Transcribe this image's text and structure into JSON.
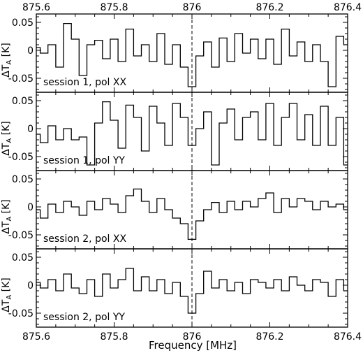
{
  "chart_data": {
    "type": "line",
    "style": "step",
    "layout": "4 vertically stacked panels sharing the frequency axis",
    "xlabel": "Frequency [MHz]",
    "xlim": [
      875.6,
      876.4
    ],
    "x_ticks": [
      "875.6",
      "875.8",
      "876",
      "876.2",
      "876.4"
    ],
    "reference_line": {
      "x": 876.0,
      "style": "dashed"
    },
    "grid": false,
    "line_color": "#000000",
    "panels": [
      {
        "label": "session 1, pol XX",
        "ylabel": "ΔT_A [K]",
        "ylim": [
          -0.075,
          0.065
        ],
        "y_ticks": [
          "0.05",
          "0",
          "-0.05"
        ],
        "series": [
          {
            "x": [
              875.6,
              875.62,
              875.64,
              875.66,
              875.68,
              875.7,
              875.72,
              875.74,
              875.76,
              875.78,
              875.8,
              875.82,
              875.84,
              875.86,
              875.88,
              875.9,
              875.92,
              875.94,
              875.96,
              875.98,
              876.0,
              876.02,
              876.04,
              876.06,
              876.08,
              876.1,
              876.12,
              876.14,
              876.16,
              876.18,
              876.2,
              876.22,
              876.24,
              876.26,
              876.28,
              876.3,
              876.32,
              876.34,
              876.36,
              876.38,
              876.4
            ],
            "values": [
              0.005,
              -0.005,
              0.01,
              -0.03,
              0.048,
              0.02,
              -0.045,
              0.01,
              0.018,
              -0.015,
              0.02,
              -0.02,
              0.038,
              -0.01,
              0.01,
              -0.02,
              0.03,
              -0.025,
              0.01,
              -0.03,
              -0.065,
              -0.01,
              0.015,
              -0.03,
              0.022,
              -0.02,
              0.03,
              -0.005,
              0.02,
              -0.015,
              0.02,
              -0.025,
              0.038,
              -0.01,
              0.015,
              -0.02,
              0.01,
              -0.02,
              -0.065,
              0.025,
              0.01
            ]
          }
        ]
      },
      {
        "label": "session 1, pol YY",
        "ylabel": "ΔT_A [K]",
        "ylim": [
          -0.075,
          0.065
        ],
        "y_ticks": [
          "0.05",
          "0",
          "-0.05"
        ],
        "series": [
          {
            "x": [
              875.6,
              875.62,
              875.64,
              875.66,
              875.68,
              875.7,
              875.72,
              875.74,
              875.76,
              875.78,
              875.8,
              875.82,
              875.84,
              875.86,
              875.88,
              875.9,
              875.92,
              875.94,
              875.96,
              875.98,
              876.0,
              876.02,
              876.04,
              876.06,
              876.08,
              876.1,
              876.12,
              876.14,
              876.16,
              876.18,
              876.2,
              876.22,
              876.24,
              876.26,
              876.28,
              876.3,
              876.32,
              876.34,
              876.36,
              876.38,
              876.4
            ],
            "values": [
              -0.01,
              -0.025,
              0.005,
              -0.02,
              0.0,
              -0.02,
              -0.015,
              -0.065,
              0.01,
              0.048,
              0.015,
              -0.035,
              0.042,
              0.02,
              -0.04,
              0.04,
              0.01,
              -0.03,
              0.045,
              0.02,
              -0.03,
              0.0,
              0.03,
              -0.065,
              0.01,
              0.035,
              -0.02,
              0.02,
              0.03,
              -0.02,
              0.045,
              -0.03,
              0.02,
              0.045,
              -0.02,
              0.025,
              -0.03,
              0.04,
              -0.03,
              0.02,
              -0.065
            ]
          }
        ]
      },
      {
        "label": "session 2, pol XX",
        "ylabel": "ΔT_A [K]",
        "ylim": [
          -0.075,
          0.065
        ],
        "y_ticks": [
          "0.05",
          "0",
          "-0.05"
        ],
        "series": [
          {
            "x": [
              875.6,
              875.62,
              875.64,
              875.66,
              875.68,
              875.7,
              875.72,
              875.74,
              875.76,
              875.78,
              875.8,
              875.82,
              875.84,
              875.86,
              875.88,
              875.9,
              875.92,
              875.94,
              875.96,
              875.98,
              876.0,
              876.02,
              876.04,
              876.06,
              876.08,
              876.1,
              876.12,
              876.14,
              876.16,
              876.18,
              876.2,
              876.22,
              876.24,
              876.26,
              876.28,
              876.3,
              876.32,
              876.34,
              876.36,
              876.38,
              876.4
            ],
            "values": [
              -0.005,
              -0.02,
              0.005,
              -0.01,
              0.01,
              0.0,
              -0.015,
              0.01,
              -0.005,
              0.015,
              0.005,
              -0.01,
              0.02,
              0.032,
              0.01,
              -0.01,
              0.015,
              -0.005,
              -0.02,
              -0.03,
              -0.058,
              -0.025,
              -0.005,
              0.008,
              -0.01,
              0.01,
              -0.005,
              0.01,
              0.0,
              0.015,
              0.025,
              -0.01,
              0.015,
              0.0,
              0.015,
              0.01,
              -0.005,
              0.01,
              0.0,
              0.005,
              -0.005
            ]
          }
        ]
      },
      {
        "label": "session 2, pol YY",
        "ylabel": "ΔT_A [K]",
        "ylim": [
          -0.075,
          0.065
        ],
        "y_ticks": [
          "0.05",
          "0",
          "-0.05"
        ],
        "series": [
          {
            "x": [
              875.6,
              875.62,
              875.64,
              875.66,
              875.68,
              875.7,
              875.72,
              875.74,
              875.76,
              875.78,
              875.8,
              875.82,
              875.84,
              875.86,
              875.88,
              875.9,
              875.92,
              875.94,
              875.96,
              875.98,
              876.0,
              876.02,
              876.04,
              876.06,
              876.08,
              876.1,
              876.12,
              876.14,
              876.16,
              876.18,
              876.2,
              876.22,
              876.24,
              876.26,
              876.28,
              876.3,
              876.32,
              876.34,
              876.36,
              876.38,
              876.4
            ],
            "values": [
              0.005,
              -0.005,
              0.01,
              -0.01,
              0.02,
              -0.005,
              -0.015,
              0.01,
              -0.02,
              0.02,
              -0.005,
              0.01,
              0.03,
              -0.01,
              0.015,
              -0.01,
              0.01,
              -0.015,
              0.005,
              -0.02,
              -0.05,
              -0.015,
              0.025,
              -0.005,
              0.01,
              -0.01,
              0.005,
              -0.015,
              0.01,
              0.005,
              -0.005,
              0.01,
              -0.01,
              0.015,
              0.0,
              -0.01,
              0.01,
              0.005,
              -0.02,
              0.01,
              -0.01
            ]
          }
        ]
      }
    ]
  }
}
